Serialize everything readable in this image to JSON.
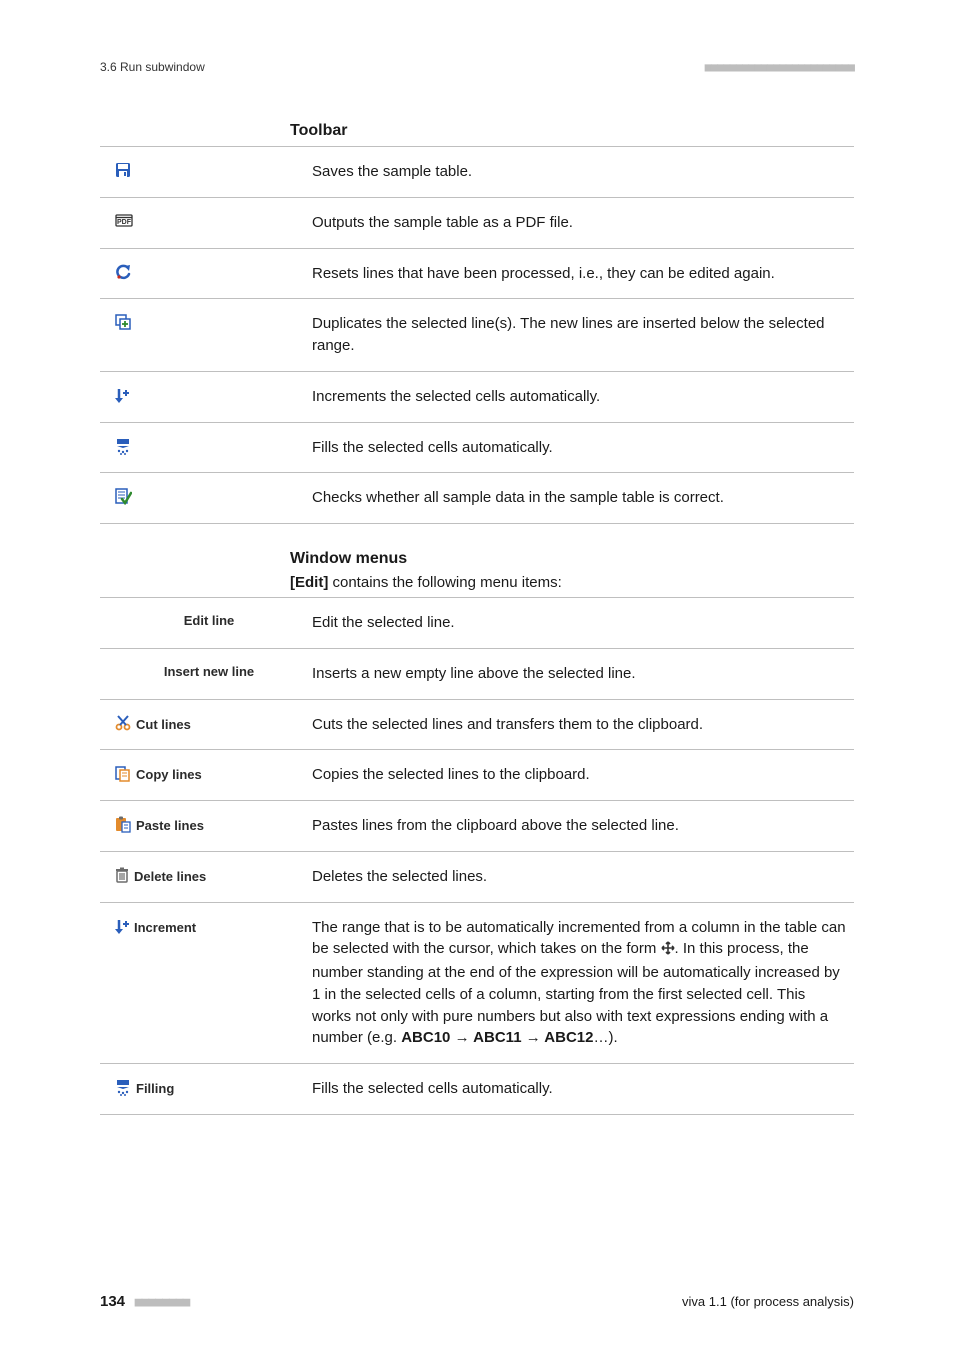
{
  "header": {
    "section": "3.6 Run subwindow",
    "dash_count": 24,
    "dash_char": "■",
    "dash_color": "#bdbdbd"
  },
  "toolbar": {
    "heading": "Toolbar",
    "rows": [
      {
        "icon": "save",
        "desc": "Saves the sample table."
      },
      {
        "icon": "pdf",
        "desc": "Outputs the sample table as a PDF file."
      },
      {
        "icon": "undo",
        "desc": "Resets lines that have been processed, i.e., they can be edited again."
      },
      {
        "icon": "duplicate",
        "desc": "Duplicates the selected line(s). The new lines are inserted below the selected range."
      },
      {
        "icon": "increment",
        "desc": "Increments the selected cells automatically."
      },
      {
        "icon": "fill",
        "desc": "Fills the selected cells automatically."
      },
      {
        "icon": "check",
        "desc": "Checks whether all sample data in the sample table is correct."
      }
    ]
  },
  "menus": {
    "heading": "Window menus",
    "sub_prefix_bold": "[Edit]",
    "sub_rest": " contains the following menu items:",
    "rows": [
      {
        "icon": null,
        "label_bold": "Edit line",
        "desc": "Edit the selected line."
      },
      {
        "icon": null,
        "label_bold": "Insert new line",
        "desc": "Inserts a new empty line above the selected line."
      },
      {
        "icon": "cut",
        "label_bold": "Cut lines",
        "desc": "Cuts the selected lines and transfers them to the clipboard."
      },
      {
        "icon": "copy",
        "label_bold": "Copy lines",
        "desc": "Copies the selected lines to the clipboard."
      },
      {
        "icon": "paste",
        "label_bold": "Paste lines",
        "desc": "Pastes lines from the clipboard above the selected line."
      },
      {
        "icon": "delete",
        "label_bold": "Delete lines",
        "desc": "Deletes the selected lines."
      },
      {
        "icon": "increment",
        "label_bold": "Increment",
        "desc_rich": true,
        "desc_parts": [
          "The range that is to be automatically incremented from a column in the table can be selected with the cursor, which takes on the form ",
          "CURSOR_ICON",
          ". In this process, the number standing at the end of the expression will be automatically increased by 1 in the selected cells of a column, starting from the first selected cell. This works not only with pure numbers but also with text expressions ending with a number (e.g. ",
          "BOLD:ABC10 → ABC11 → ABC12",
          "…)."
        ]
      },
      {
        "icon": "fill",
        "label_bold": "Filling",
        "desc": "Fills the selected cells automatically."
      }
    ]
  },
  "footer": {
    "page": "134",
    "dash_count": 8,
    "dash_char": "■",
    "dash_color": "#bdbdbd",
    "product": "viva 1.1 (for process analysis)"
  },
  "colors": {
    "icon_blue": "#2a5ebb",
    "icon_orange": "#e38b2c",
    "icon_red": "#c92a1d",
    "icon_green": "#2f8a2f",
    "icon_grey": "#6b6b6b",
    "border": "#bfbfbf",
    "text": "#1a1a1a"
  }
}
